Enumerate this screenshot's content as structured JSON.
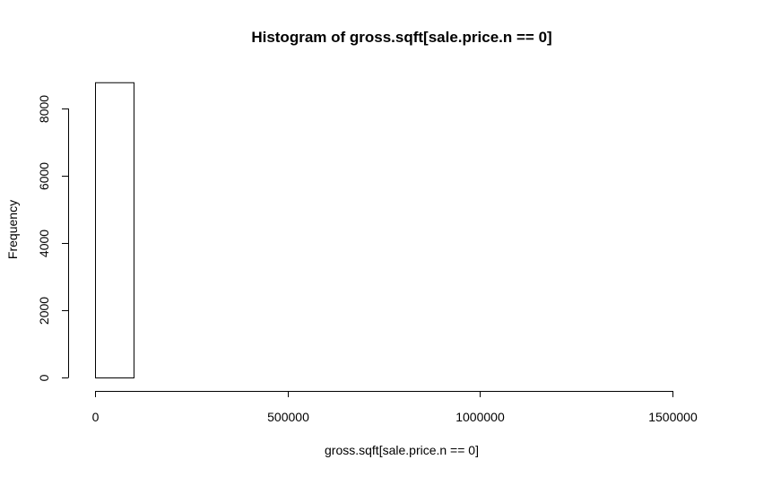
{
  "chart_data": {
    "type": "bar",
    "title": "Histogram of gross.sqft[sale.price.n == 0]",
    "xlabel": "gross.sqft[sale.price.n == 0]",
    "ylabel": "Frequency",
    "bins": [
      {
        "start": 0,
        "end": 100000,
        "count": 8780
      },
      {
        "start": 100000,
        "end": 200000,
        "count": 0
      },
      {
        "start": 200000,
        "end": 300000,
        "count": 0
      },
      {
        "start": 300000,
        "end": 400000,
        "count": 0
      },
      {
        "start": 400000,
        "end": 500000,
        "count": 0
      },
      {
        "start": 500000,
        "end": 600000,
        "count": 0
      },
      {
        "start": 600000,
        "end": 700000,
        "count": 0
      },
      {
        "start": 700000,
        "end": 800000,
        "count": 0
      },
      {
        "start": 800000,
        "end": 900000,
        "count": 0
      },
      {
        "start": 900000,
        "end": 1000000,
        "count": 0
      },
      {
        "start": 1000000,
        "end": 1100000,
        "count": 0
      },
      {
        "start": 1100000,
        "end": 1200000,
        "count": 0
      },
      {
        "start": 1200000,
        "end": 1300000,
        "count": 0
      },
      {
        "start": 1300000,
        "end": 1400000,
        "count": 0
      },
      {
        "start": 1400000,
        "end": 1500000,
        "count": 0
      },
      {
        "start": 1500000,
        "end": 1600000,
        "count": 0
      }
    ],
    "xlim": [
      0,
      1600000
    ],
    "ylim": [
      0,
      8800
    ],
    "x_ticks": [
      0,
      500000,
      1000000,
      1500000
    ],
    "x_tick_labels": [
      "0",
      "500000",
      "1000000",
      "1500000"
    ],
    "y_ticks": [
      0,
      2000,
      4000,
      6000,
      8000
    ],
    "y_tick_labels": [
      "0",
      "2000",
      "4000",
      "6000",
      "8000"
    ],
    "grid": false,
    "bar_fill": "#ffffff",
    "bar_stroke": "#000000"
  }
}
